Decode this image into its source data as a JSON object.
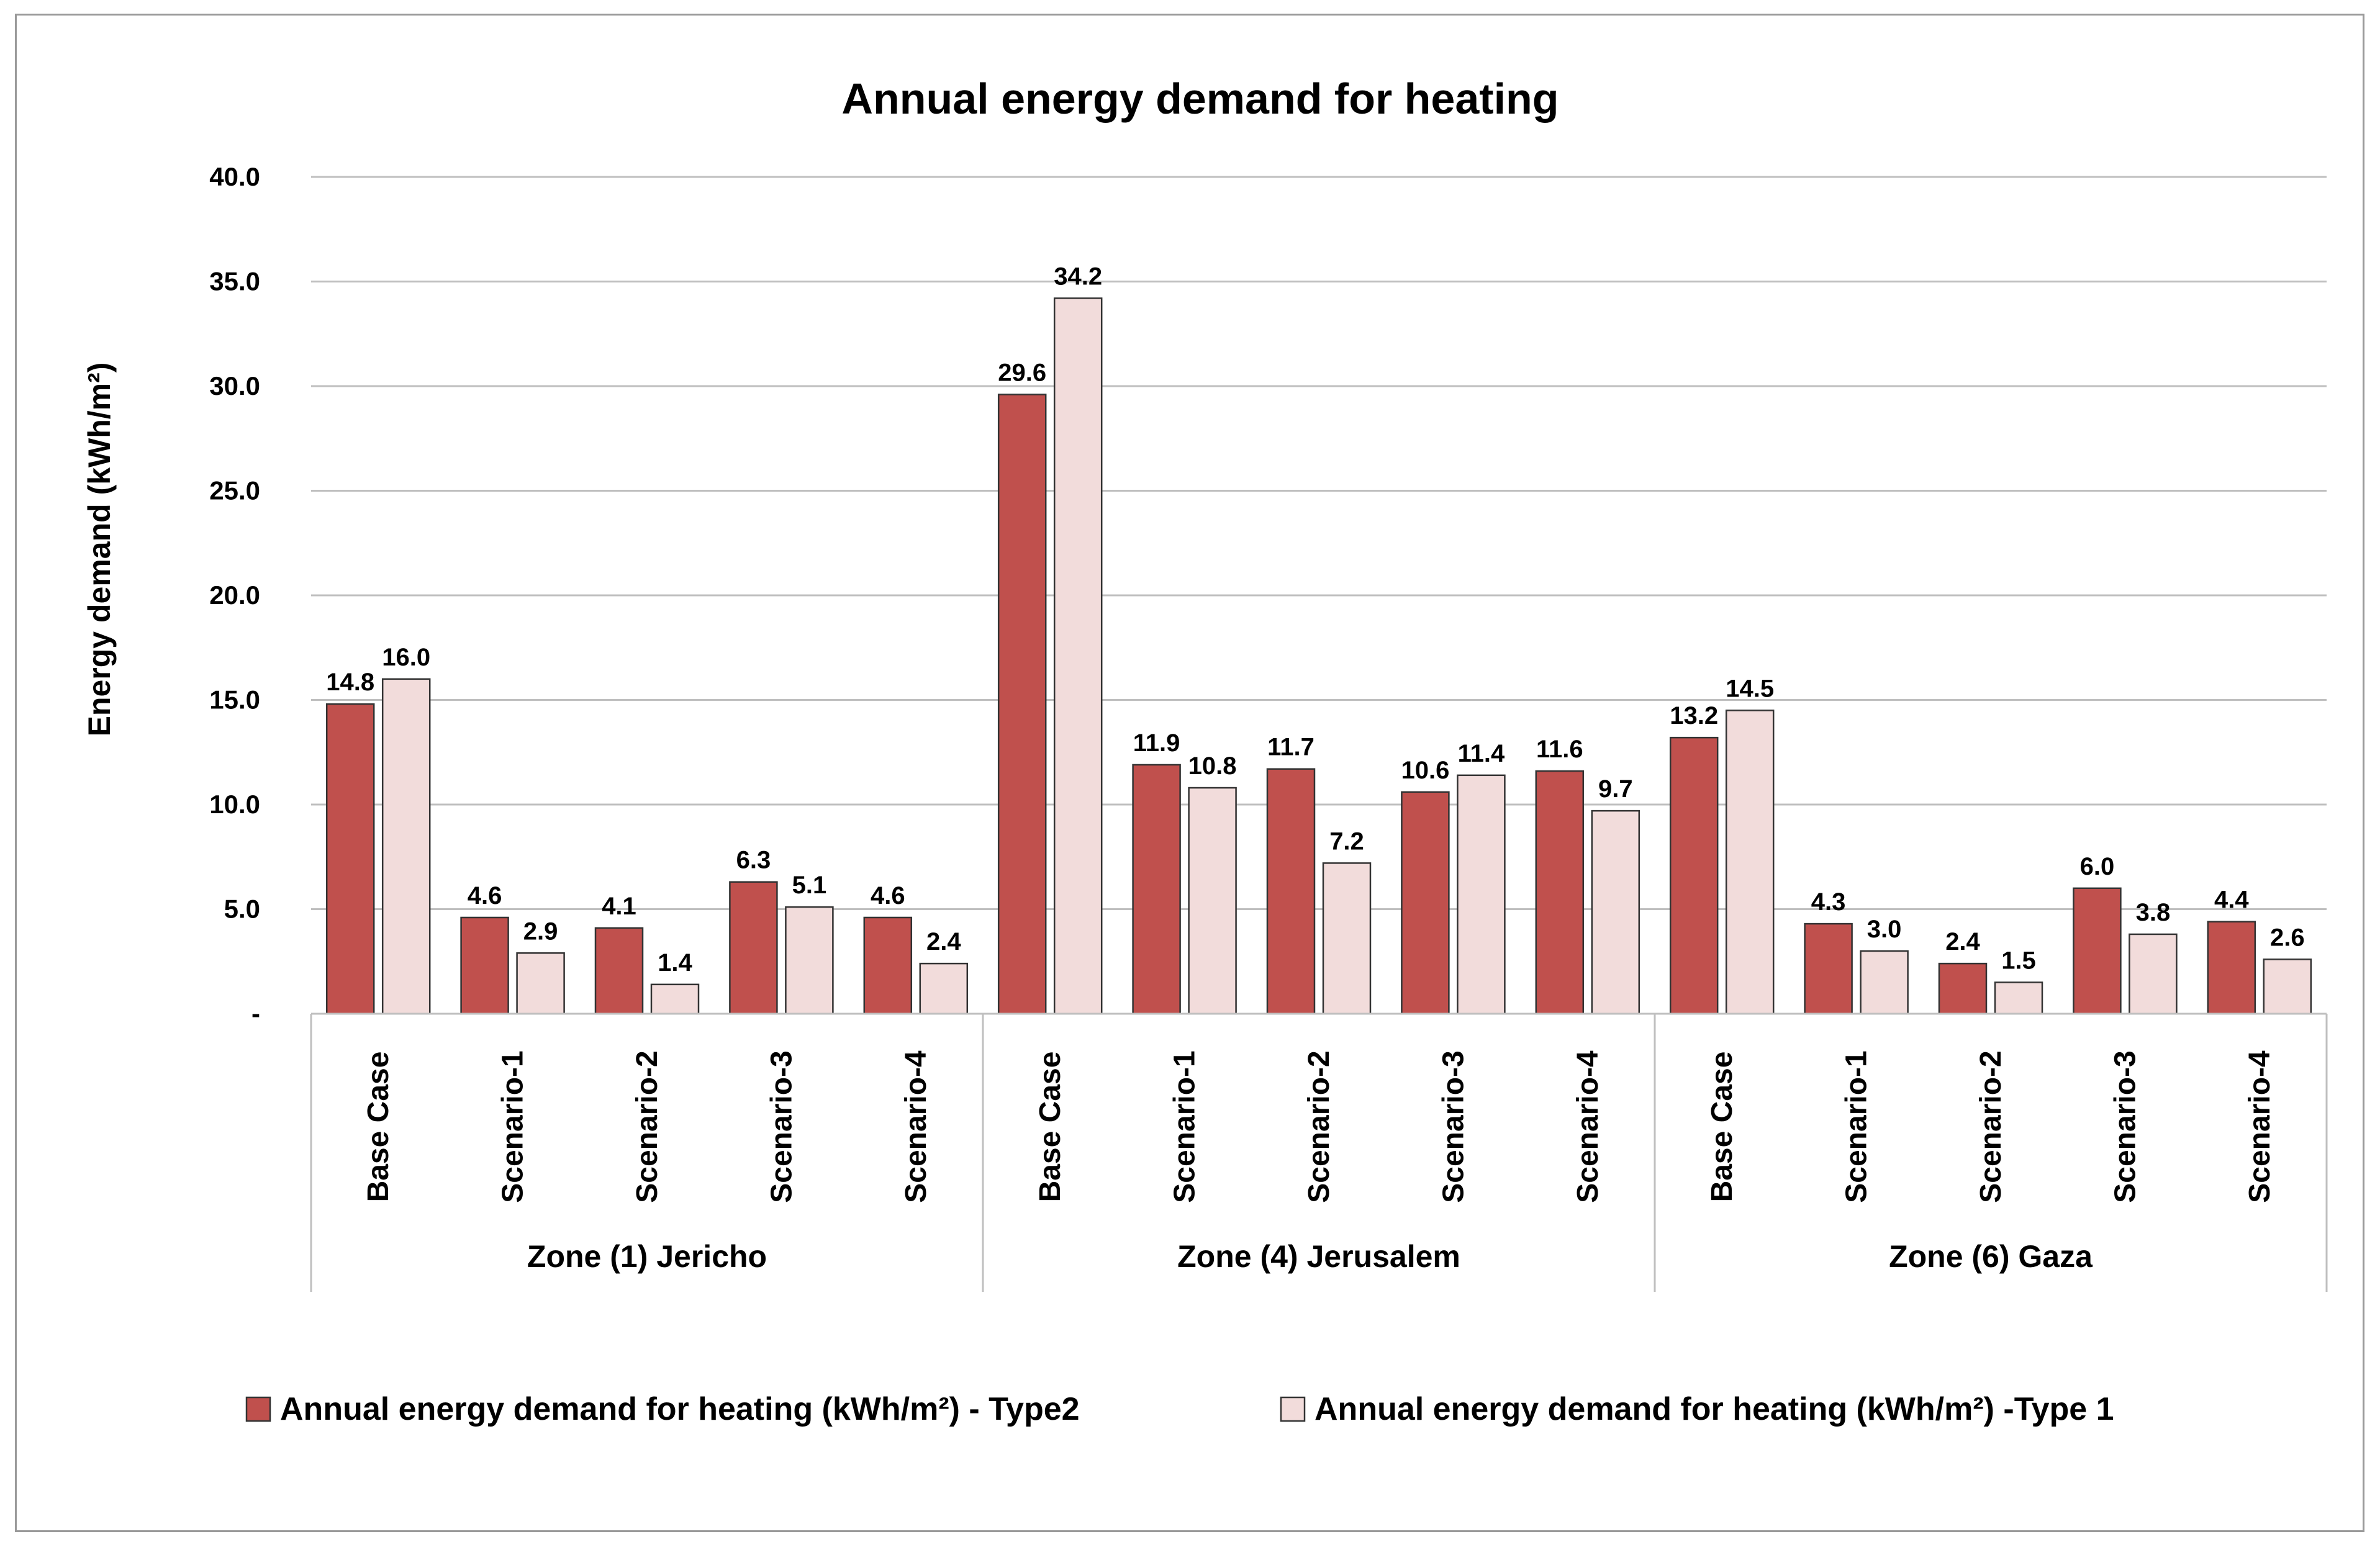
{
  "chart_data": {
    "type": "bar",
    "title": "Annual energy demand for heating",
    "ylabel": "Energy demand (kWh/m²)",
    "xlabel": "",
    "ylim": [
      0,
      40
    ],
    "yticks": [
      "-",
      "5.0",
      "10.0",
      "15.0",
      "20.0",
      "25.0",
      "30.0",
      "35.0",
      "40.0"
    ],
    "grid": true,
    "legend_position": "bottom",
    "groups": [
      {
        "name": "Zone (1) Jericho",
        "categories": [
          "Base Case",
          "Scenario-1",
          "Scenario-2",
          "Scenario-3",
          "Scenario-4"
        ]
      },
      {
        "name": "Zone (4) Jerusalem",
        "categories": [
          "Base Case",
          "Scenario-1",
          "Scenario-2",
          "Scenario-3",
          "Scenario-4"
        ]
      },
      {
        "name": "Zone (6) Gaza",
        "categories": [
          "Base Case",
          "Scenario-1",
          "Scenario-2",
          "Scenario-3",
          "Scenario-4"
        ]
      }
    ],
    "series": [
      {
        "name": "Annual energy demand for heating (kWh/m²) - Type2",
        "color": "#C0504D",
        "values": [
          14.8,
          4.6,
          4.1,
          6.3,
          4.6,
          29.6,
          11.9,
          11.7,
          10.6,
          11.6,
          13.2,
          4.3,
          2.4,
          6.0,
          4.4
        ]
      },
      {
        "name": "Annual energy demand for heating (kWh/m²) -Type 1",
        "color": "#F2DCDB",
        "values": [
          16.0,
          2.9,
          1.4,
          5.1,
          2.4,
          34.2,
          10.8,
          7.2,
          11.4,
          9.7,
          14.5,
          3.0,
          1.5,
          3.8,
          2.6
        ]
      }
    ]
  },
  "colors": {
    "gridline": "#BFBFBF",
    "bar_outline": "#333333",
    "frame": "#9A9A9A"
  }
}
